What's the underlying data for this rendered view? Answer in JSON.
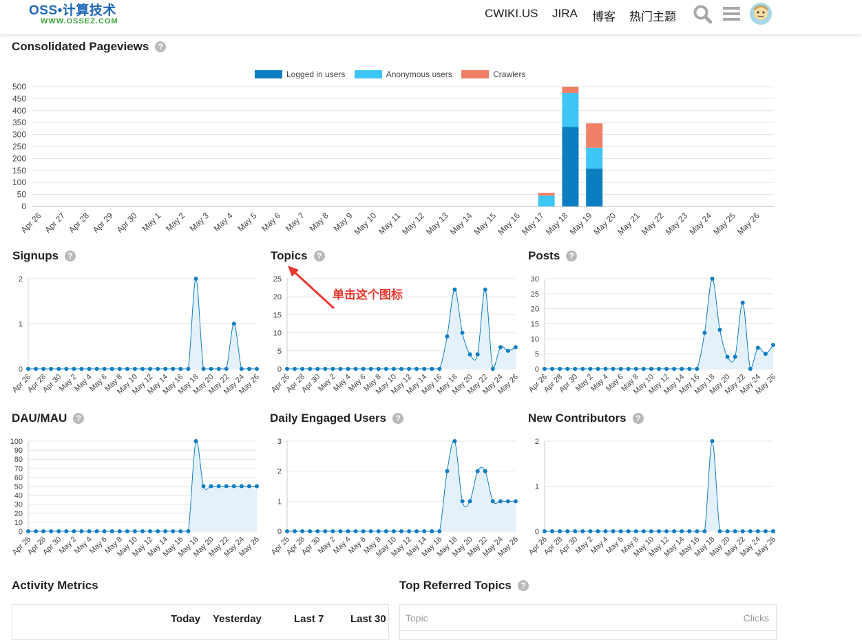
{
  "header": {
    "logo_main": "OSS•计算技术",
    "logo_sub": "WWW.OSSEZ.COM",
    "nav": [
      "CWIKI.US",
      "JIRA",
      "博客",
      "热门主题"
    ],
    "icons": [
      "search-icon",
      "hamburger-menu-icon",
      "avatar"
    ]
  },
  "help_glyph": "?",
  "pageviews": {
    "title": "Consolidated Pageviews",
    "chart_data": {
      "type": "bar",
      "stacked": true,
      "categories": [
        "Apr 26",
        "Apr 27",
        "Apr 28",
        "Apr 29",
        "Apr 30",
        "May 1",
        "May 2",
        "May 3",
        "May 4",
        "May 5",
        "May 6",
        "May 7",
        "May 8",
        "May 9",
        "May 10",
        "May 11",
        "May 12",
        "May 13",
        "May 14",
        "May 15",
        "May 16",
        "May 17",
        "May 18",
        "May 19",
        "May 20",
        "May 21",
        "May 22",
        "May 23",
        "May 24",
        "May 25",
        "May 26"
      ],
      "series": [
        {
          "name": "Logged in users",
          "color": "#0b7ec2",
          "values": [
            0,
            0,
            0,
            0,
            0,
            0,
            0,
            0,
            0,
            0,
            0,
            0,
            0,
            0,
            0,
            0,
            0,
            0,
            0,
            0,
            0,
            0,
            332,
            158,
            0,
            0,
            0,
            0,
            0,
            0,
            0
          ]
        },
        {
          "name": "Anonymous users",
          "color": "#3ec6f7",
          "values": [
            0,
            0,
            0,
            0,
            0,
            0,
            0,
            0,
            0,
            0,
            0,
            0,
            0,
            0,
            0,
            0,
            0,
            0,
            0,
            0,
            0,
            45,
            142,
            87,
            0,
            0,
            0,
            0,
            0,
            0,
            0
          ]
        },
        {
          "name": "Crawlers",
          "color": "#ef8066",
          "values": [
            0,
            0,
            0,
            0,
            0,
            0,
            0,
            0,
            0,
            0,
            0,
            0,
            0,
            0,
            0,
            0,
            0,
            0,
            0,
            0,
            0,
            12,
            26,
            102,
            0,
            0,
            0,
            0,
            0,
            0,
            0
          ]
        }
      ],
      "ylim": [
        0,
        500
      ],
      "yticks": [
        0,
        50,
        100,
        150,
        200,
        250,
        300,
        350,
        400,
        450,
        500
      ],
      "legend_position": "top",
      "grid": true
    }
  },
  "small_x_labels": [
    "Apr 26",
    "Apr 28",
    "Apr 30",
    "May 2",
    "May 4",
    "May 6",
    "May 8",
    "May 10",
    "May 12",
    "May 14",
    "May 16",
    "May 18",
    "May 20",
    "May 22",
    "May 24",
    "May 26"
  ],
  "small_charts": [
    {
      "id": "signups",
      "title": "Signups",
      "chart_data": {
        "type": "area",
        "ylim": [
          0,
          2
        ],
        "yticks": [
          0,
          1,
          2
        ],
        "values": [
          0,
          0,
          0,
          0,
          0,
          0,
          0,
          0,
          0,
          0,
          0,
          0,
          0,
          0,
          0,
          0,
          0,
          0,
          0,
          0,
          0,
          0,
          2,
          0,
          0,
          0,
          0,
          1,
          0,
          0,
          0
        ]
      }
    },
    {
      "id": "topics",
      "title": "Topics",
      "chart_data": {
        "type": "area",
        "ylim": [
          0,
          25
        ],
        "yticks": [
          0,
          5,
          10,
          15,
          20,
          25
        ],
        "values": [
          0,
          0,
          0,
          0,
          0,
          0,
          0,
          0,
          0,
          0,
          0,
          0,
          0,
          0,
          0,
          0,
          0,
          0,
          0,
          0,
          0,
          9,
          22,
          10,
          4,
          4,
          22,
          0,
          6,
          5,
          6
        ]
      }
    },
    {
      "id": "posts",
      "title": "Posts",
      "chart_data": {
        "type": "area",
        "ylim": [
          0,
          30
        ],
        "yticks": [
          0,
          5,
          10,
          15,
          20,
          25,
          30
        ],
        "values": [
          0,
          0,
          0,
          0,
          0,
          0,
          0,
          0,
          0,
          0,
          0,
          0,
          0,
          0,
          0,
          0,
          0,
          0,
          0,
          0,
          0,
          12,
          30,
          13,
          4,
          4,
          22,
          0,
          7,
          5,
          8
        ]
      }
    },
    {
      "id": "dau-mau",
      "title": "DAU/MAU",
      "chart_data": {
        "type": "area",
        "ylim": [
          0,
          100
        ],
        "yticks": [
          0,
          10,
          20,
          30,
          40,
          50,
          60,
          70,
          80,
          90,
          100
        ],
        "values": [
          0,
          0,
          0,
          0,
          0,
          0,
          0,
          0,
          0,
          0,
          0,
          0,
          0,
          0,
          0,
          0,
          0,
          0,
          0,
          0,
          0,
          0,
          100,
          50,
          50,
          50,
          50,
          50,
          50,
          50,
          50
        ]
      }
    },
    {
      "id": "daily-engaged-users",
      "title": "Daily Engaged Users",
      "chart_data": {
        "type": "area",
        "ylim": [
          0,
          3
        ],
        "yticks": [
          0,
          1,
          2,
          3
        ],
        "values": [
          0,
          0,
          0,
          0,
          0,
          0,
          0,
          0,
          0,
          0,
          0,
          0,
          0,
          0,
          0,
          0,
          0,
          0,
          0,
          0,
          0,
          2,
          3,
          1,
          1,
          2,
          2,
          1,
          1,
          1,
          1
        ]
      }
    },
    {
      "id": "new-contributors",
      "title": "New Contributors",
      "chart_data": {
        "type": "area",
        "ylim": [
          0,
          2
        ],
        "yticks": [
          0,
          1,
          2
        ],
        "values": [
          0,
          0,
          0,
          0,
          0,
          0,
          0,
          0,
          0,
          0,
          0,
          0,
          0,
          0,
          0,
          0,
          0,
          0,
          0,
          0,
          0,
          0,
          2,
          0,
          0,
          0,
          0,
          0,
          0,
          0,
          0
        ]
      }
    }
  ],
  "annotation": {
    "text": "单击这个图标",
    "color": "#e8392f"
  },
  "activity_metrics": {
    "title": "Activity Metrics",
    "columns": [
      "Today",
      "Yesterday",
      "Last 7",
      "Last 30"
    ]
  },
  "top_referred_topics": {
    "title": "Top Referred Topics",
    "columns": [
      "Topic",
      "Clicks"
    ]
  },
  "colors": {
    "line": "#0f7ec2",
    "area": "#e4f1fa",
    "grid": "#e5e5e5",
    "axis_text": "#444444"
  }
}
